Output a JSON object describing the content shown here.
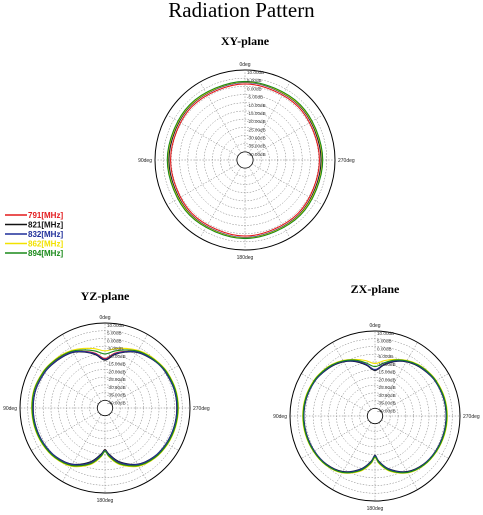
{
  "title": "Radiation Pattern",
  "legend": [
    {
      "label": "791[MHz]",
      "color": "#e31a1c"
    },
    {
      "label": "821[MHz]",
      "color": "#111111"
    },
    {
      "label": "832[MHz]",
      "color": "#1f2f9a"
    },
    {
      "label": "862[MHz]",
      "color": "#f2e200"
    },
    {
      "label": "894[MHz]",
      "color": "#1a8a1a"
    }
  ],
  "chart_data": [
    {
      "type": "polar",
      "title": "XY-plane",
      "angle_labels": {
        "top": "0deg",
        "right": "270deg",
        "bottom": "180deg",
        "left": "90deg"
      },
      "radial_ticks": [
        "10.00dB",
        "5.00dB",
        "0.00dB",
        "-5.00dB",
        "-10.00dB",
        "-15.00dB",
        "-20.00dB",
        "-25.00dB",
        "-30.00dB",
        "-35.00dB",
        "-40.00dB"
      ],
      "rlim_db": [
        -40,
        10
      ],
      "angle_deg": [
        0,
        45,
        90,
        135,
        180,
        225,
        270,
        315
      ],
      "series": [
        {
          "label": "791[MHz]",
          "gain_db": [
            1.5,
            1.0,
            0.5,
            1.0,
            1.5,
            1.0,
            0.5,
            1.0
          ]
        },
        {
          "label": "821[MHz]",
          "gain_db": [
            2.5,
            2.0,
            1.5,
            2.0,
            2.5,
            2.0,
            1.5,
            2.0
          ]
        },
        {
          "label": "832[MHz]",
          "gain_db": [
            2.5,
            2.2,
            2.0,
            2.2,
            2.5,
            2.2,
            2.0,
            2.2
          ]
        },
        {
          "label": "862[MHz]",
          "gain_db": [
            2.8,
            2.4,
            2.2,
            2.4,
            2.8,
            2.4,
            2.2,
            2.4
          ]
        },
        {
          "label": "894[MHz]",
          "gain_db": [
            3.0,
            2.8,
            2.5,
            2.8,
            3.0,
            2.8,
            2.5,
            2.8
          ]
        }
      ]
    },
    {
      "type": "polar",
      "title": "YZ-plane",
      "angle_labels": {
        "top": "0deg",
        "right": "270deg",
        "bottom": "180deg",
        "left": "90deg"
      },
      "radial_ticks": [
        "10.00dB",
        "5.00dB",
        "0.00dB",
        "-5.00dB",
        "-10.00dB",
        "-15.00dB",
        "-20.00dB",
        "-25.00dB",
        "-30.00dB",
        "-35.00dB",
        "-40.00dB"
      ],
      "rlim_db": [
        -40,
        10
      ],
      "angle_deg": [
        0,
        10,
        20,
        30,
        40,
        50,
        60,
        75,
        90,
        105,
        120,
        135,
        150,
        165,
        175,
        180,
        185,
        195,
        210,
        225,
        240,
        255,
        270,
        285,
        300,
        310,
        320,
        330,
        340,
        350
      ],
      "series": [
        {
          "label": "791[MHz]",
          "gain_db": [
            -13,
            -9,
            -6,
            -3,
            -1.5,
            -0.5,
            0.5,
            1.5,
            1.5,
            1.5,
            1.0,
            0.0,
            -2.5,
            -8,
            -14,
            -18,
            -14,
            -8,
            -2.5,
            0.0,
            1.0,
            1.5,
            1.5,
            1.5,
            1.0,
            0.0,
            -1.5,
            -3,
            -6,
            -9
          ]
        },
        {
          "label": "821[MHz]",
          "gain_db": [
            -14,
            -10,
            -6.5,
            -3.5,
            -2.0,
            -0.8,
            0.3,
            1.3,
            1.5,
            1.3,
            0.8,
            -0.3,
            -3.0,
            -9,
            -15,
            -18,
            -15,
            -9,
            -3.0,
            -0.3,
            0.8,
            1.3,
            1.5,
            1.3,
            0.5,
            -0.3,
            -1.8,
            -3.5,
            -6.5,
            -10
          ]
        },
        {
          "label": "832[MHz]",
          "gain_db": [
            -13.5,
            -9.5,
            -6.2,
            -3.2,
            -1.8,
            -0.6,
            0.4,
            1.4,
            1.6,
            1.4,
            0.9,
            -0.2,
            -2.8,
            -8.5,
            -14.5,
            -17.5,
            -14.5,
            -8.5,
            -2.8,
            -0.2,
            0.9,
            1.4,
            1.6,
            1.4,
            0.6,
            -0.2,
            -1.6,
            -3.2,
            -6.2,
            -9.5
          ]
        },
        {
          "label": "862[MHz]",
          "gain_db": [
            -8,
            -6,
            -4,
            -2,
            -0.5,
            0.5,
            1.5,
            2.5,
            2.5,
            2.3,
            1.8,
            0.8,
            -1.5,
            -7,
            -13,
            -17,
            -13,
            -7,
            -1.5,
            0.8,
            1.8,
            2.3,
            2.5,
            2.3,
            1.5,
            0.5,
            -0.5,
            -2,
            -4,
            -6
          ]
        },
        {
          "label": "894[MHz]",
          "gain_db": [
            -10,
            -7.5,
            -5,
            -2.5,
            -1.0,
            0.2,
            1.2,
            2.2,
            2.2,
            2.0,
            1.5,
            0.5,
            -2.0,
            -7.5,
            -13.5,
            -17,
            -13.5,
            -7.5,
            -2.0,
            0.5,
            1.5,
            2.0,
            2.2,
            2.0,
            1.2,
            0.2,
            -1.0,
            -2.5,
            -5,
            -7.5
          ]
        }
      ]
    },
    {
      "type": "polar",
      "title": "ZX-plane",
      "angle_labels": {
        "top": "0deg",
        "right": "270deg",
        "bottom": "180deg",
        "left": "90deg"
      },
      "radial_ticks": [
        "10.00dB",
        "5.00dB",
        "0.00dB",
        "-5.00dB",
        "-10.00dB",
        "-15.00dB",
        "-20.00dB",
        "-25.00dB",
        "-30.00dB",
        "-35.00dB",
        "-40.00dB"
      ],
      "rlim_db": [
        -40,
        10
      ],
      "angle_deg": [
        0,
        10,
        20,
        30,
        40,
        50,
        60,
        75,
        90,
        105,
        120,
        135,
        150,
        165,
        175,
        180,
        185,
        195,
        210,
        225,
        240,
        255,
        270,
        285,
        300,
        310,
        320,
        330,
        340,
        350
      ],
      "series": [
        {
          "label": "791[MHz]",
          "gain_db": [
            -15,
            -11,
            -7,
            -4,
            -2,
            -0.8,
            0.2,
            1.0,
            1.2,
            1.0,
            0.5,
            -0.5,
            -3,
            -9,
            -15,
            -19,
            -15,
            -9,
            -3,
            -0.5,
            0.5,
            1.0,
            1.2,
            1.0,
            0.2,
            -0.8,
            -2,
            -4,
            -7,
            -11
          ]
        },
        {
          "label": "821[MHz]",
          "gain_db": [
            -15.5,
            -11.5,
            -7.5,
            -4.5,
            -2.5,
            -1.2,
            0.0,
            0.8,
            1.0,
            0.8,
            0.3,
            -0.8,
            -3.5,
            -9.5,
            -15.5,
            -19.5,
            -15.5,
            -9.5,
            -3.5,
            -0.8,
            0.3,
            0.8,
            1.0,
            0.8,
            0.0,
            -1.2,
            -2.5,
            -4.5,
            -7.5,
            -11.5
          ]
        },
        {
          "label": "832[MHz]",
          "gain_db": [
            -15,
            -11,
            -7.2,
            -4.2,
            -2.2,
            -1.0,
            0.1,
            0.9,
            1.1,
            0.9,
            0.4,
            -0.6,
            -3.2,
            -9.2,
            -15.2,
            -19.2,
            -15.2,
            -9.2,
            -3.2,
            -0.6,
            0.4,
            0.9,
            1.1,
            0.9,
            0.1,
            -1.0,
            -2.2,
            -4.2,
            -7.2,
            -11
          ]
        },
        {
          "label": "862[MHz]",
          "gain_db": [
            -11,
            -8.5,
            -6,
            -3.5,
            -1.5,
            -0.2,
            0.8,
            1.6,
            1.8,
            1.6,
            1.0,
            0.0,
            -2.5,
            -8,
            -14,
            -18,
            -14,
            -8,
            -2.5,
            0.0,
            1.0,
            1.6,
            1.8,
            1.6,
            0.8,
            -0.2,
            -1.5,
            -3.5,
            -6,
            -8.5
          ]
        },
        {
          "label": "894[MHz]",
          "gain_db": [
            -13,
            -10,
            -6.5,
            -3.8,
            -1.8,
            -0.5,
            0.5,
            1.3,
            1.5,
            1.3,
            0.8,
            -0.2,
            -2.8,
            -8.5,
            -14.5,
            -18.5,
            -14.5,
            -8.5,
            -2.8,
            -0.2,
            0.8,
            1.3,
            1.5,
            1.3,
            0.5,
            -0.5,
            -1.8,
            -3.8,
            -6.5,
            -10
          ]
        }
      ]
    }
  ]
}
